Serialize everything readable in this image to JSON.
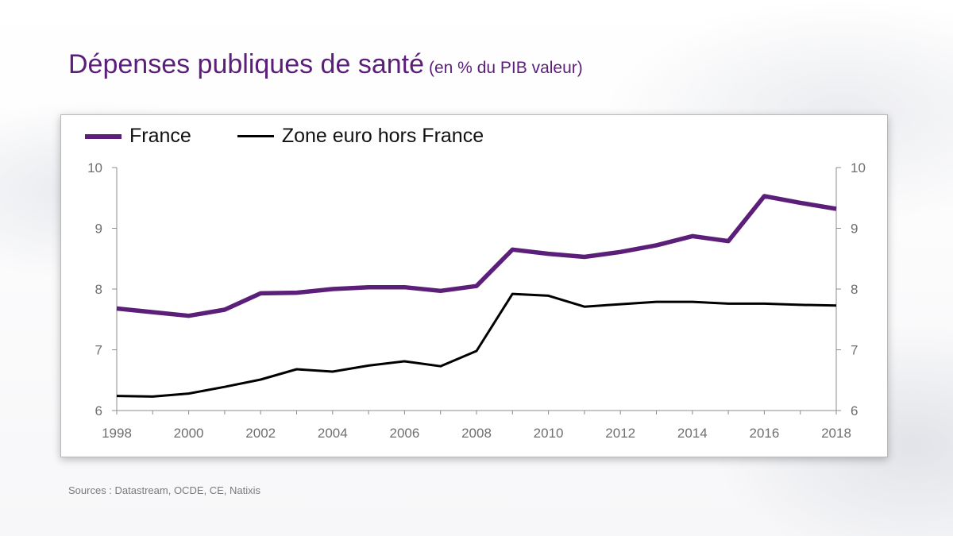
{
  "page": {
    "title": "Dépenses publiques de santé",
    "subtitle": "(en % du PIB valeur)",
    "source": "Sources : Datastream, OCDE, CE, Natixis"
  },
  "chart_data": {
    "type": "line",
    "title": "Dépenses publiques de santé",
    "subtitle": "(en % du PIB valeur)",
    "xlabel": "",
    "ylabel": "",
    "x": [
      1998,
      1999,
      2000,
      2001,
      2002,
      2003,
      2004,
      2005,
      2006,
      2007,
      2008,
      2009,
      2010,
      2011,
      2012,
      2013,
      2014,
      2015,
      2016,
      2017,
      2018
    ],
    "x_tick_labels": [
      "1998",
      "2000",
      "2002",
      "2004",
      "2006",
      "2008",
      "2010",
      "2012",
      "2014",
      "2016",
      "2018"
    ],
    "ylim": [
      6,
      10
    ],
    "y_ticks": [
      6,
      7,
      8,
      9,
      10
    ],
    "y_tick_labels": [
      "6",
      "7",
      "8",
      "9",
      "10"
    ],
    "secondary_y_tick_labels": [
      "6",
      "7",
      "8",
      "9",
      "10"
    ],
    "legend_position": "top-left",
    "grid": false,
    "series": [
      {
        "name": "France",
        "color": "#5b1f7a",
        "values": [
          7.68,
          7.62,
          7.56,
          7.66,
          7.93,
          7.94,
          8.0,
          8.03,
          8.03,
          7.97,
          8.05,
          8.65,
          8.58,
          8.53,
          8.61,
          8.72,
          8.87,
          8.79,
          9.53,
          9.42,
          9.32
        ]
      },
      {
        "name": "Zone euro hors France",
        "color": "#000000",
        "values": [
          6.24,
          6.23,
          6.28,
          6.39,
          6.51,
          6.68,
          6.64,
          6.74,
          6.81,
          6.73,
          6.98,
          7.92,
          7.89,
          7.71,
          7.75,
          7.79,
          7.79,
          7.76,
          7.76,
          7.74,
          7.73
        ]
      }
    ]
  }
}
